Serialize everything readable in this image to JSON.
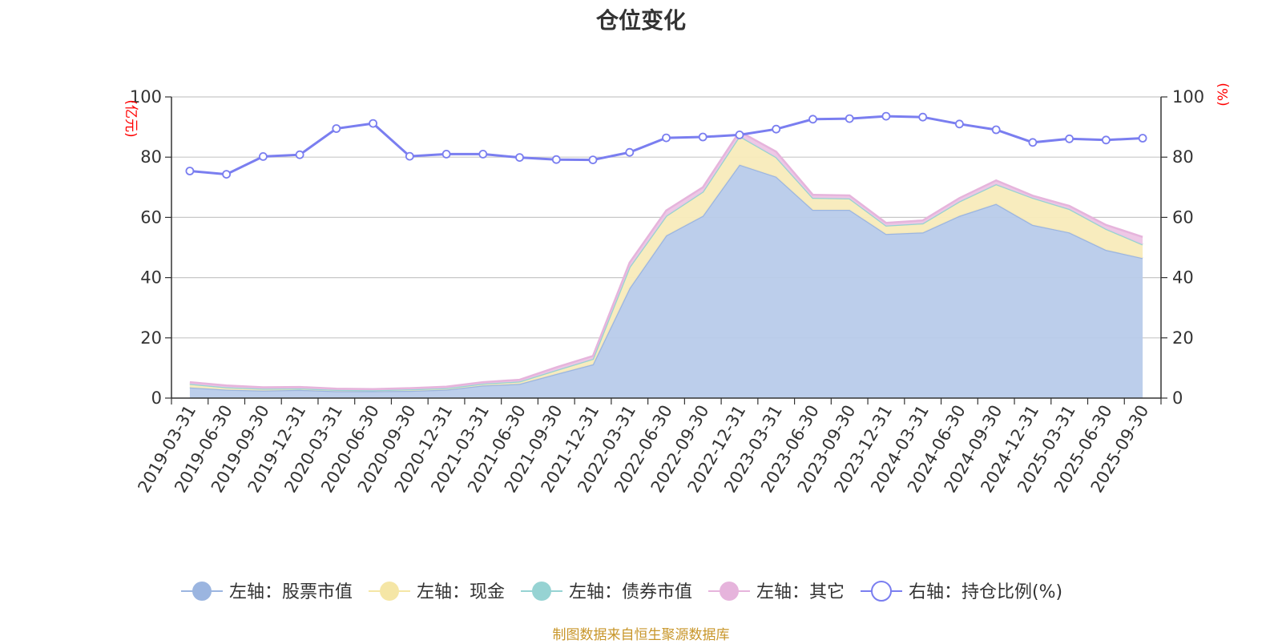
{
  "chart_data": {
    "type": "area",
    "title": "仓位变化",
    "left_axis_unit": "(亿元)",
    "right_axis_unit": "(%)",
    "ylim_left": [
      0,
      100
    ],
    "ylim_right": [
      0,
      100
    ],
    "y_ticks": [
      0,
      20,
      40,
      60,
      80,
      100
    ],
    "grid": true,
    "legend_position": "bottom",
    "x": [
      "2019-03-31",
      "2019-06-30",
      "2019-09-30",
      "2019-12-31",
      "2020-03-31",
      "2020-06-30",
      "2020-09-30",
      "2020-12-31",
      "2021-03-31",
      "2021-06-30",
      "2021-09-30",
      "2021-12-31",
      "2022-03-31",
      "2022-06-30",
      "2022-09-30",
      "2022-12-31",
      "2023-03-31",
      "2023-06-30",
      "2023-09-30",
      "2023-12-31",
      "2024-03-31",
      "2024-06-30",
      "2024-09-30",
      "2024-12-31",
      "2025-03-31",
      "2025-06-30",
      "2025-09-30"
    ],
    "series": [
      {
        "name": "左轴：股票市值",
        "axis": "left",
        "color": "#9bb5e0",
        "fill": "#b8cbea",
        "values": [
          3.5,
          2.8,
          2.5,
          2.7,
          2.3,
          2.3,
          2.4,
          2.8,
          4.2,
          4.7,
          8.0,
          11.2,
          36.5,
          54.0,
          60.5,
          77.5,
          73.5,
          62.5,
          62.5,
          54.5,
          55.0,
          60.5,
          64.5,
          57.5,
          55.0,
          49.2,
          46.5
        ]
      },
      {
        "name": "左轴：现金",
        "axis": "left",
        "color": "#f5e6a6",
        "fill": "#f8ebbb",
        "values": [
          1.2,
          0.8,
          0.6,
          0.5,
          0.4,
          0.3,
          0.5,
          0.5,
          0.6,
          0.8,
          1.3,
          1.8,
          7.0,
          6.5,
          8.0,
          9.5,
          6.5,
          4.0,
          3.8,
          2.8,
          3.0,
          4.8,
          6.5,
          9.0,
          7.8,
          7.0,
          4.5
        ]
      },
      {
        "name": "左轴：债券市值",
        "axis": "left",
        "color": "#96d3d3",
        "fill": "#a8dddd",
        "values": [
          0,
          0,
          0,
          0,
          0,
          0,
          0,
          0,
          0,
          0,
          0,
          0,
          0,
          0,
          0,
          0,
          0,
          0,
          0,
          0,
          0,
          0,
          0,
          0,
          0,
          0,
          0
        ]
      },
      {
        "name": "左轴：其它",
        "axis": "left",
        "color": "#e6b4dc",
        "fill": "#edc5e5",
        "values": [
          0.6,
          0.6,
          0.5,
          0.5,
          0.4,
          0.4,
          0.4,
          0.5,
          0.5,
          0.6,
          0.9,
          1.0,
          1.5,
          1.8,
          1.5,
          1.5,
          1.8,
          1.0,
          1.0,
          0.9,
          1.0,
          1.1,
          1.3,
          0.7,
          1.0,
          1.3,
          2.5
        ]
      },
      {
        "name": "右轴：持仓比例(%)",
        "axis": "right",
        "color": "#7a7ef0",
        "values": [
          75.4,
          74.3,
          80.2,
          80.8,
          89.5,
          91.2,
          80.3,
          81.0,
          81.0,
          79.9,
          79.2,
          79.1,
          81.6,
          86.4,
          86.7,
          87.4,
          89.3,
          92.6,
          92.8,
          93.6,
          93.3,
          91.0,
          89.1,
          84.9,
          86.1,
          85.7,
          86.3
        ]
      }
    ]
  },
  "footer": "制图数据来自恒生聚源数据库"
}
